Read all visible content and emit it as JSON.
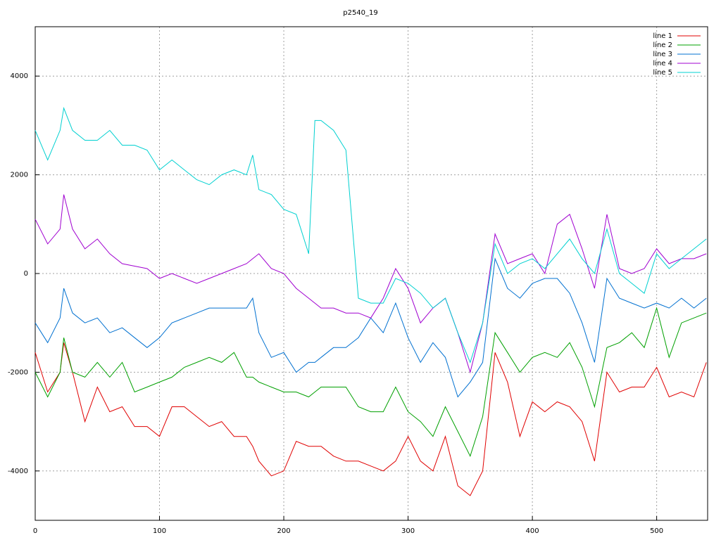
{
  "chart_data": {
    "type": "line",
    "title": "p2540_19",
    "x": [
      0,
      10,
      20,
      23,
      30,
      40,
      50,
      60,
      70,
      80,
      90,
      100,
      110,
      120,
      130,
      140,
      150,
      160,
      170,
      175,
      180,
      190,
      200,
      210,
      220,
      225,
      230,
      240,
      250,
      260,
      270,
      280,
      290,
      300,
      310,
      320,
      330,
      340,
      350,
      360,
      370,
      380,
      390,
      400,
      410,
      420,
      430,
      440,
      450,
      460,
      470,
      480,
      490,
      500,
      510,
      520,
      530,
      540
    ],
    "series": [
      {
        "name": "line 1",
        "color": "#e00000",
        "values": [
          -1600,
          -2400,
          -2000,
          -1400,
          -2000,
          -3000,
          -2300,
          -2800,
          -2700,
          -3100,
          -3100,
          -3300,
          -2700,
          -2700,
          -2900,
          -3100,
          -3000,
          -3300,
          -3300,
          -3500,
          -3800,
          -4100,
          -4000,
          -3400,
          -3500,
          -3500,
          -3500,
          -3700,
          -3800,
          -3800,
          -3900,
          -4000,
          -3800,
          -3300,
          -3800,
          -4000,
          -3300,
          -4300,
          -4500,
          -4000,
          -1600,
          -2200,
          -3300,
          -2600,
          -2800,
          -2600,
          -2700,
          -3000,
          -3800,
          -2000,
          -2400,
          -2300,
          -2300,
          -1900,
          -2500,
          -2400,
          -2500,
          -1800
        ]
      },
      {
        "name": "line 2",
        "color": "#00a000",
        "values": [
          -2000,
          -2500,
          -2000,
          -1300,
          -2000,
          -2100,
          -1800,
          -2100,
          -1800,
          -2400,
          -2300,
          -2200,
          -2100,
          -1900,
          -1800,
          -1700,
          -1800,
          -1600,
          -2100,
          -2100,
          -2200,
          -2300,
          -2400,
          -2400,
          -2500,
          -2400,
          -2300,
          -2300,
          -2300,
          -2700,
          -2800,
          -2800,
          -2300,
          -2800,
          -3000,
          -3300,
          -2700,
          -3200,
          -3700,
          -2900,
          -1200,
          -1600,
          -2000,
          -1700,
          -1600,
          -1700,
          -1400,
          -1900,
          -2700,
          -1500,
          -1400,
          -1200,
          -1500,
          -700,
          -1700,
          -1000,
          -900,
          -800
        ]
      },
      {
        "name": "line 3",
        "color": "#0070d0",
        "values": [
          -1000,
          -1400,
          -900,
          -300,
          -800,
          -1000,
          -900,
          -1200,
          -1100,
          -1300,
          -1500,
          -1300,
          -1000,
          -900,
          -800,
          -700,
          -700,
          -700,
          -700,
          -500,
          -1200,
          -1700,
          -1600,
          -2000,
          -1800,
          -1800,
          -1700,
          -1500,
          -1500,
          -1300,
          -900,
          -1200,
          -600,
          -1300,
          -1800,
          -1400,
          -1700,
          -2500,
          -2200,
          -1800,
          300,
          -300,
          -500,
          -200,
          -100,
          -100,
          -400,
          -1000,
          -1800,
          -100,
          -500,
          -600,
          -700,
          -600,
          -700,
          -500,
          -700,
          -500
        ]
      },
      {
        "name": "line 4",
        "color": "#a000d0",
        "values": [
          1100,
          600,
          900,
          1600,
          900,
          500,
          700,
          400,
          200,
          150,
          100,
          -100,
          0,
          -100,
          -200,
          -100,
          0,
          100,
          200,
          300,
          400,
          100,
          0,
          -300,
          -500,
          -600,
          -700,
          -700,
          -800,
          -800,
          -900,
          -500,
          100,
          -300,
          -1000,
          -700,
          -500,
          -1200,
          -2000,
          -1000,
          800,
          200,
          300,
          400,
          0,
          1000,
          1200,
          500,
          -300,
          1200,
          100,
          0,
          100,
          500,
          200,
          300,
          300,
          400
        ]
      },
      {
        "name": "line 5",
        "color": "#00d0d0",
        "values": [
          2900,
          2300,
          2900,
          3350,
          2900,
          2700,
          2700,
          2900,
          2600,
          2600,
          2500,
          2100,
          2300,
          2100,
          1900,
          1800,
          2000,
          2100,
          2000,
          2400,
          1700,
          1600,
          1300,
          1200,
          400,
          3100,
          3100,
          2900,
          2500,
          -500,
          -600,
          -600,
          -100,
          -200,
          -400,
          -700,
          -500,
          -1200,
          -1800,
          -1000,
          600,
          0,
          200,
          300,
          100,
          400,
          700,
          300,
          0,
          900,
          0,
          -200,
          -400,
          400,
          100,
          300,
          500,
          700
        ]
      }
    ],
    "xlim": [
      0,
      541
    ],
    "ylim": [
      -5000,
      5000
    ],
    "xticks": [
      0,
      100,
      200,
      300,
      400,
      500
    ],
    "yticks": [
      -4000,
      -2000,
      0,
      2000,
      4000
    ],
    "grid": true,
    "legend": "top-right"
  }
}
